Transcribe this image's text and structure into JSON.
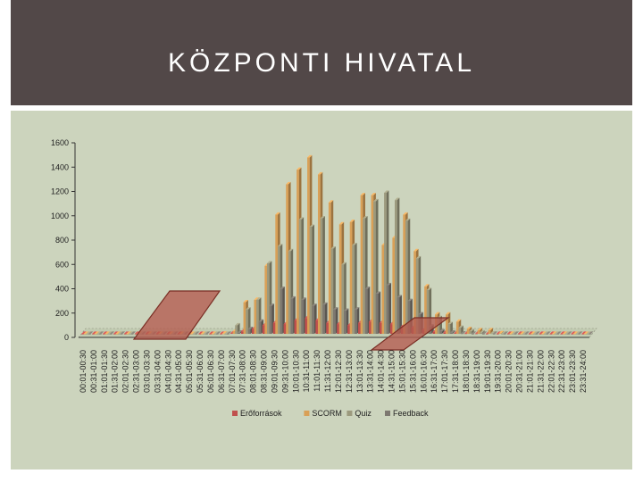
{
  "header": {
    "title": "KÖZPONTI HIVATAL"
  },
  "colors": {
    "header_bg": "#524848",
    "chart_bg": "#ccd4bd",
    "highlight_fill": "#b45a4e",
    "highlight_stroke": "#7a2f25"
  },
  "chart_data": {
    "type": "bar",
    "title": "",
    "xlabel": "",
    "ylabel": "",
    "ylim": [
      0,
      1600
    ],
    "yticks": [
      0,
      200,
      400,
      600,
      800,
      1000,
      1200,
      1400,
      1600
    ],
    "grid": false,
    "style": "3d-clustered-column",
    "legend_position": "bottom",
    "categories": [
      "00:01-00:30",
      "00:31-01:00",
      "01:01-01:30",
      "01:31-02:00",
      "02:01-02:30",
      "02:31-03:00",
      "03:01-03:30",
      "03:31-04:00",
      "04:01-04:30",
      "04:31-05:00",
      "05:01-05:30",
      "05:31-06:00",
      "06:01-06:30",
      "06:31-07:00",
      "07:01-07:30",
      "07:31-08:00",
      "08:01-08:30",
      "08:31-09:00",
      "09:01-09:30",
      "09:31-10:00",
      "10:01-10:30",
      "10:31-11:00",
      "11:01-11:30",
      "11:31-12:00",
      "12:01-12:30",
      "12:31-13:00",
      "13:01-13:30",
      "13:31-14:00",
      "14:01-14:30",
      "14:31-15:00",
      "15:01-15:30",
      "15:31-16:00",
      "16:01-16:30",
      "16:31-17:00",
      "17:01-17:30",
      "17:31-18:00",
      "18:01-18:30",
      "18:31-19:00",
      "19:01-19:30",
      "19:31-20:00",
      "20:01-20:30",
      "20:31-21:00",
      "21:01-21:30",
      "21:31-22:00",
      "22:01-22:30",
      "22:31-23:00",
      "23:01-23:30",
      "23:31-24:00"
    ],
    "series": [
      {
        "name": "Erőforrások",
        "color": "#c0504d",
        "values": [
          0,
          0,
          0,
          0,
          0,
          0,
          0,
          0,
          0,
          0,
          0,
          0,
          0,
          0,
          5,
          20,
          40,
          70,
          90,
          80,
          110,
          130,
          110,
          90,
          80,
          70,
          90,
          100,
          90,
          80,
          60,
          50,
          30,
          15,
          10,
          5,
          3,
          2,
          0,
          0,
          0,
          0,
          0,
          0,
          0,
          0,
          0,
          0
        ]
      },
      {
        "name": "SCORM",
        "color": "#d9a057",
        "values": [
          0,
          0,
          0,
          0,
          0,
          0,
          0,
          0,
          0,
          0,
          0,
          0,
          0,
          2,
          20,
          260,
          280,
          560,
          980,
          1230,
          1350,
          1450,
          1310,
          1080,
          900,
          920,
          1140,
          1140,
          730,
          790,
          980,
          680,
          390,
          160,
          160,
          100,
          40,
          30,
          30,
          5,
          0,
          0,
          0,
          0,
          0,
          0,
          0,
          0
        ]
      },
      {
        "name": "Quiz",
        "color": "#9c9a7e",
        "values": [
          0,
          0,
          0,
          0,
          0,
          0,
          0,
          0,
          0,
          0,
          0,
          0,
          0,
          0,
          70,
          200,
          280,
          580,
          720,
          680,
          940,
          880,
          950,
          700,
          570,
          730,
          950,
          1090,
          1160,
          1100,
          930,
          620,
          360,
          130,
          80,
          50,
          20,
          10,
          3,
          0,
          0,
          0,
          0,
          0,
          0,
          0,
          0,
          0
        ]
      },
      {
        "name": "Feedback",
        "color": "#7d7870",
        "values": [
          0,
          0,
          0,
          0,
          0,
          0,
          0,
          0,
          0,
          0,
          0,
          0,
          0,
          0,
          10,
          40,
          100,
          230,
          370,
          290,
          280,
          230,
          240,
          200,
          190,
          200,
          370,
          330,
          400,
          300,
          270,
          160,
          60,
          20,
          10,
          3,
          0,
          0,
          0,
          0,
          0,
          0,
          0,
          0,
          0,
          0,
          0,
          0
        ]
      }
    ]
  }
}
